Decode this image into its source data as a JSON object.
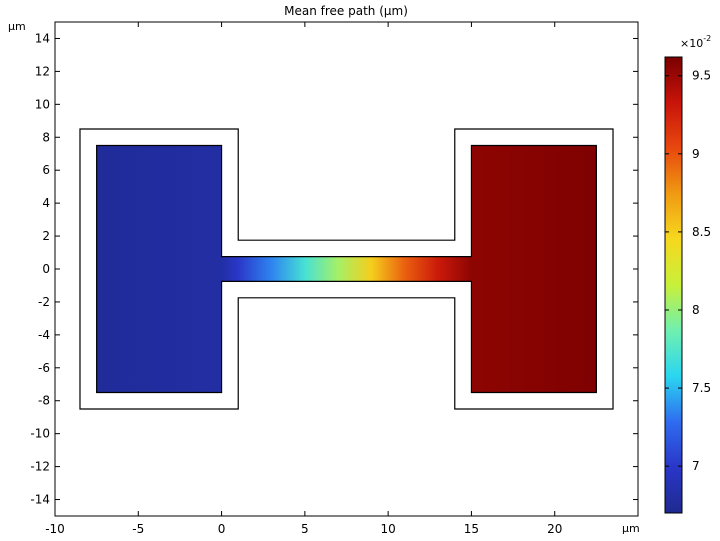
{
  "chart_data": {
    "type": "heatmap",
    "title": "Mean free path (µm)",
    "xlabel": "µm",
    "ylabel": "µm",
    "xlim": [
      -10,
      25
    ],
    "ylim": [
      -15,
      15
    ],
    "x_ticks": [
      -10,
      -5,
      0,
      5,
      10,
      15,
      20
    ],
    "y_ticks": [
      -14,
      -12,
      -10,
      -8,
      -6,
      -4,
      -2,
      0,
      2,
      4,
      6,
      8,
      10,
      12,
      14
    ],
    "geometry": {
      "outer_boundary": [
        [
          -8.5,
          8.5
        ],
        [
          1,
          8.5
        ],
        [
          1,
          1.75
        ],
        [
          14,
          1.75
        ],
        [
          14,
          8.5
        ],
        [
          23.5,
          8.5
        ],
        [
          23.5,
          -8.5
        ],
        [
          14,
          -8.5
        ],
        [
          14,
          -1.75
        ],
        [
          1,
          -1.75
        ],
        [
          1,
          -8.5
        ],
        [
          -8.5,
          -8.5
        ]
      ],
      "field_region": [
        [
          -7.5,
          7.5
        ],
        [
          0,
          7.5
        ],
        [
          0,
          0.75
        ],
        [
          15,
          0.75
        ],
        [
          15,
          7.5
        ],
        [
          22.5,
          7.5
        ],
        [
          22.5,
          -7.5
        ],
        [
          15,
          -7.5
        ],
        [
          15,
          -0.75
        ],
        [
          0,
          -0.75
        ],
        [
          0,
          -7.5
        ],
        [
          -7.5,
          -7.5
        ]
      ]
    },
    "field_profile": {
      "x": [
        -7.5,
        0,
        1,
        3,
        5,
        7,
        9,
        11,
        13,
        15,
        22.5
      ],
      "values": [
        6.75,
        6.8,
        7.0,
        7.35,
        7.7,
        8.05,
        8.5,
        8.95,
        9.3,
        9.55,
        9.6
      ]
    },
    "colorbar": {
      "multiplier": "×10",
      "exponent": "-2",
      "min": 6.7,
      "max": 9.62,
      "ticks": [
        {
          "value": 7,
          "label": "7"
        },
        {
          "value": 7.5,
          "label": "7.5"
        },
        {
          "value": 8,
          "label": "8"
        },
        {
          "value": 8.5,
          "label": "8.5"
        },
        {
          "value": 9,
          "label": "9"
        },
        {
          "value": 9.5,
          "label": "9.5"
        }
      ]
    },
    "colormap": [
      "#1e2a8f",
      "#2a36c8",
      "#2f6cf0",
      "#2ad6f0",
      "#6ff0b0",
      "#c8f03a",
      "#f6d81e",
      "#f09a12",
      "#e8480e",
      "#c8140a",
      "#7a0000"
    ],
    "grid": false,
    "legend": "colorbar-right"
  }
}
